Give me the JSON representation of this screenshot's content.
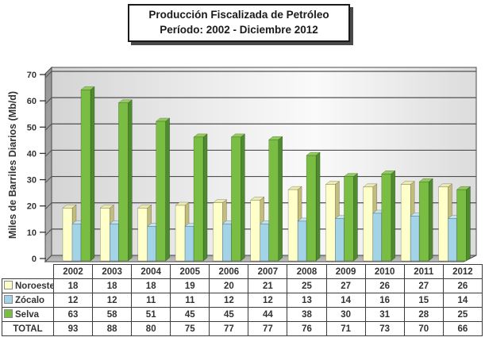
{
  "title": {
    "line1": "Producción Fiscalizada de Petróleo",
    "line2": "Período: 2002 -  Diciembre 2012"
  },
  "chart_data": {
    "type": "bar",
    "style": "3d-clustered",
    "title": "Producción Fiscalizada de Petróleo Período: 2002 - Diciembre 2012",
    "xlabel": "",
    "ylabel": "Miles de Barriles Diarios (Mb/d)",
    "ylim": [
      0,
      70
    ],
    "ytick_step": 10,
    "grid": true,
    "legend_position": "table-left",
    "categories": [
      "2002",
      "2003",
      "2004",
      "2005",
      "2006",
      "2007",
      "2008",
      "2009",
      "2010",
      "2011",
      "2012"
    ],
    "series": [
      {
        "name": "Noroeste",
        "color": "#FFFFC9",
        "side": "#C2BD7D",
        "top": "#EDEAB0",
        "values": [
          18,
          18,
          18,
          19,
          20,
          21,
          25,
          27,
          26,
          27,
          26
        ]
      },
      {
        "name": "Zócalo",
        "color": "#A3D3E6",
        "side": "#6FA3BF",
        "top": "#C3E3F0",
        "values": [
          12,
          12,
          11,
          11,
          12,
          12,
          13,
          14,
          16,
          15,
          14
        ]
      },
      {
        "name": "Selva",
        "color": "#79BE43",
        "side": "#4E8A2E",
        "top": "#92CC5C",
        "values": [
          63,
          58,
          51,
          45,
          45,
          44,
          38,
          30,
          31,
          28,
          25
        ]
      }
    ],
    "totals": {
      "label": "TOTAL",
      "values": [
        93,
        88,
        80,
        75,
        77,
        77,
        76,
        71,
        73,
        70,
        66
      ]
    },
    "colors": {
      "axis_text": "#333333",
      "gridline": "#4f4f4f",
      "wall_edge": "#4a4a4a"
    }
  }
}
